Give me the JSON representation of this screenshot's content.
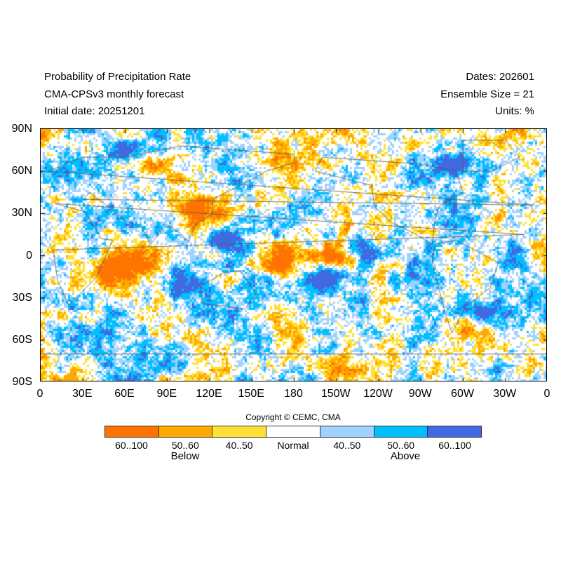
{
  "header": {
    "title": "Probability of Precipitation Rate",
    "model": "CMA-CPSv3 monthly forecast",
    "initial_date": "Initial date: 20251201",
    "dates": "Dates: 202601",
    "ensemble": "Ensemble Size = 21",
    "units": "Units: %"
  },
  "map": {
    "lat_labels": [
      "90N",
      "60N",
      "30N",
      "0",
      "30S",
      "60S",
      "90S"
    ],
    "lon_labels": [
      "0",
      "30E",
      "60E",
      "90E",
      "120E",
      "150E",
      "180",
      "150W",
      "120W",
      "90W",
      "60W",
      "30W",
      "0"
    ]
  },
  "copyright": "Copyright © CEMC, CMA",
  "legend": {
    "bins": [
      {
        "label": "60..100",
        "color": "#ff7400"
      },
      {
        "label": "50..60",
        "color": "#ffaa00"
      },
      {
        "label": "40..50",
        "color": "#ffe033"
      },
      {
        "label": "Normal",
        "color": "#ffffff"
      },
      {
        "label": "40..50",
        "color": "#a0d2ff"
      },
      {
        "label": "50..60",
        "color": "#00bfff"
      },
      {
        "label": "60..100",
        "color": "#4169e1"
      }
    ],
    "below_label": "Below",
    "above_label": "Above"
  }
}
